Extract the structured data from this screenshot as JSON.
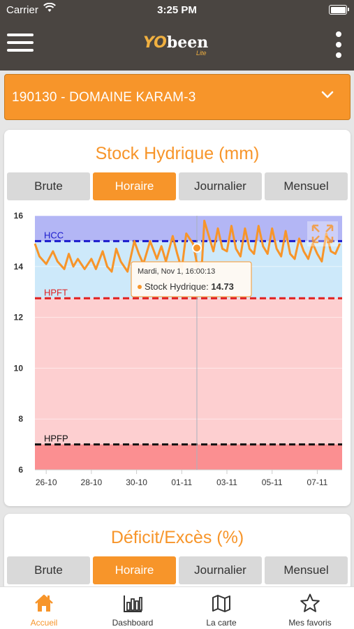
{
  "status_bar": {
    "carrier": "Carrier",
    "time": "3:25 PM"
  },
  "header": {
    "logo_main": "been",
    "logo_prefix": "YO",
    "logo_sub": "Lite"
  },
  "site_selector": {
    "value": "190130 - DOMAINE KARAM-3"
  },
  "card_stock": {
    "title": "Stock Hydrique (mm)",
    "segments": [
      "Brute",
      "Horaire",
      "Journalier",
      "Mensuel"
    ],
    "active_segment": "Horaire"
  },
  "card_deficit": {
    "title": "Déficit/Excès (%)",
    "segments": [
      "Brute",
      "Horaire",
      "Journalier",
      "Mensuel"
    ],
    "active_segment": "Horaire"
  },
  "chart_data": {
    "type": "line",
    "ylim": [
      6,
      16
    ],
    "yticks": [
      6,
      8,
      10,
      12,
      14,
      16
    ],
    "x_tick_labels": [
      "26-10",
      "28-10",
      "30-10",
      "01-11",
      "03-11",
      "05-11",
      "07-11"
    ],
    "x_range_days": [
      25.5,
      39.1
    ],
    "x_tick_days": [
      26,
      28,
      30,
      32,
      34,
      36,
      38
    ],
    "thresholds": [
      {
        "name": "HCC",
        "value": 15.0,
        "color": "#1a1acc"
      },
      {
        "name": "HPFT",
        "value": 12.75,
        "color": "#e02020"
      },
      {
        "name": "HPFP",
        "value": 7.0,
        "color": "#111111"
      }
    ],
    "zones": [
      {
        "from": 15.0,
        "to": 16.0,
        "color": "#b3b6f5"
      },
      {
        "from": 12.75,
        "to": 15.0,
        "color": "#cde9fa"
      },
      {
        "from": 7.0,
        "to": 12.75,
        "color": "#fdcfd0"
      },
      {
        "from": 6.0,
        "to": 7.0,
        "color": "#fb8f91"
      }
    ],
    "series": [
      {
        "color": "#f7952a",
        "x": [
          25.5,
          25.7,
          26.0,
          26.3,
          26.5,
          26.8,
          27.0,
          27.2,
          27.4,
          27.7,
          28.0,
          28.2,
          28.5,
          28.7,
          28.9,
          29.1,
          29.3,
          29.6,
          29.9,
          30.1,
          30.3,
          30.6,
          30.9,
          31.1,
          31.3,
          31.6,
          31.8,
          32.0,
          32.2,
          32.5,
          32.7,
          32.9,
          33.0,
          33.2,
          33.4,
          33.6,
          33.8,
          34.0,
          34.2,
          34.4,
          34.6,
          34.8,
          35.0,
          35.2,
          35.4,
          35.6,
          35.8,
          36.0,
          36.2,
          36.4,
          36.6,
          36.8,
          37.0,
          37.2,
          37.4,
          37.6,
          37.8,
          38.0,
          38.2,
          38.4,
          38.6,
          38.8,
          39.0
        ],
        "y": [
          14.9,
          14.4,
          14.1,
          14.6,
          14.2,
          13.9,
          14.5,
          14.0,
          14.3,
          13.9,
          14.3,
          13.9,
          14.6,
          14.0,
          13.8,
          14.7,
          14.2,
          13.8,
          15.0,
          14.5,
          14.1,
          15.0,
          14.3,
          14.8,
          14.2,
          15.2,
          14.5,
          13.9,
          15.3,
          14.9,
          14.0,
          14.2,
          15.8,
          15.2,
          14.6,
          15.5,
          14.7,
          14.6,
          15.6,
          14.7,
          14.4,
          15.5,
          14.7,
          14.5,
          15.6,
          14.8,
          14.5,
          15.5,
          14.7,
          14.4,
          15.4,
          14.5,
          14.3,
          15.1,
          14.6,
          14.3,
          14.9,
          14.5,
          14.2,
          15.3,
          14.6,
          14.5,
          14.9
        ]
      }
    ],
    "crosshair_x": 32.67,
    "tooltip": {
      "date": "Mardi, Nov 1, 16:00:13",
      "series": "Stock Hydrique:",
      "value": "14.73",
      "value_num": 14.73
    }
  },
  "tabbar": {
    "tabs": [
      {
        "label": "Accueil",
        "icon": "home-icon"
      },
      {
        "label": "Dashboard",
        "icon": "bar-chart-icon"
      },
      {
        "label": "La carte",
        "icon": "map-icon"
      },
      {
        "label": "Mes favoris",
        "icon": "star-icon"
      }
    ],
    "active": "Accueil"
  },
  "colors": {
    "accent": "#f7952a",
    "header_bg": "#4a4541"
  }
}
